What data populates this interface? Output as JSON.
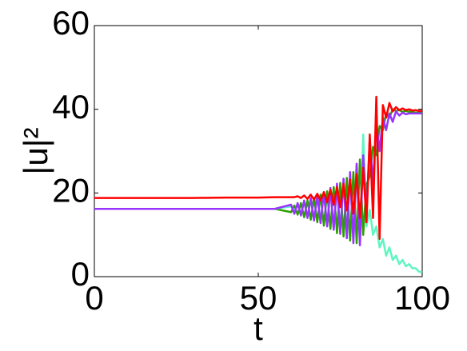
{
  "chart_data": {
    "type": "line",
    "xlabel": "t",
    "ylabel": "|u|²",
    "x": [
      0,
      10,
      20,
      30,
      40,
      50,
      55,
      60,
      61,
      62,
      63,
      64,
      65,
      66,
      67,
      68,
      69,
      70,
      71,
      72,
      73,
      74,
      75,
      76,
      77,
      78,
      79,
      80,
      81,
      82,
      83,
      84,
      85,
      86,
      87,
      88,
      89,
      90,
      91,
      92,
      93,
      94,
      95,
      96,
      97,
      98,
      99,
      100
    ],
    "series": [
      {
        "name": "green",
        "color": "#2ca000",
        "values": [
          16.2,
          16.2,
          16.2,
          16.2,
          16.2,
          16.2,
          16.2,
          15.4,
          17.0,
          14.8,
          17.6,
          14.2,
          18.2,
          13.6,
          18.8,
          13.0,
          19.6,
          12.2,
          20.4,
          11.4,
          21.4,
          10.4,
          22.4,
          9.6,
          23.6,
          8.6,
          25,
          8,
          28,
          10,
          22,
          24,
          31,
          29,
          36,
          35,
          39,
          38,
          40,
          39.6,
          39.8,
          39.4,
          39.6,
          39.4,
          39.4,
          39.2,
          39.2,
          39.2
        ]
      },
      {
        "name": "cyan",
        "color": "#5ef5c0",
        "values": [
          16.2,
          16.2,
          16.2,
          16.2,
          16.2,
          16.2,
          16.2,
          16.8,
          15.6,
          17.2,
          15.0,
          17.8,
          14.4,
          18.4,
          13.8,
          19.0,
          13.2,
          19.8,
          12.4,
          20.8,
          11.6,
          21.8,
          10.8,
          22.6,
          10.0,
          24,
          9,
          26,
          8,
          34,
          12,
          16,
          10,
          12,
          7,
          9,
          5,
          7,
          4,
          5,
          3,
          4,
          2.5,
          3,
          2,
          2,
          1.2,
          1
        ]
      },
      {
        "name": "purple",
        "color": "#9933ff",
        "values": [
          16.2,
          16.2,
          16.2,
          16.2,
          16.2,
          16.2,
          16.2,
          17.2,
          15.0,
          17.6,
          14.6,
          18.2,
          14.0,
          18.8,
          13.4,
          19.4,
          12.8,
          20.2,
          12.0,
          21.2,
          11.2,
          22.2,
          10.2,
          23.4,
          9.2,
          25,
          8,
          27,
          7.5,
          29,
          15,
          33,
          22,
          37,
          30,
          38,
          35,
          39,
          37,
          39.5,
          38.5,
          39.2,
          38.8,
          39,
          39,
          39,
          39,
          39
        ]
      },
      {
        "name": "red",
        "color": "#ff0000",
        "values": [
          18.8,
          18.8,
          18.8,
          18.8,
          18.9,
          18.9,
          19.0,
          19.0,
          19.0,
          19.2,
          18.8,
          19.4,
          18.6,
          19.6,
          18.4,
          19.8,
          18.2,
          20.2,
          17.8,
          20.8,
          17.2,
          21.4,
          16.6,
          22.2,
          15.8,
          23.2,
          15,
          24.5,
          14,
          26,
          13,
          34,
          14,
          43,
          9,
          41,
          38,
          41.5,
          39.5,
          40.5,
          39.8,
          40.2,
          39.8,
          40,
          39.7,
          39.8,
          39.6,
          39.6
        ]
      }
    ],
    "xlim": [
      0,
      100
    ],
    "xticks": [
      0,
      50,
      100
    ],
    "ylim": [
      0,
      60
    ],
    "yticks": [
      0,
      20,
      40,
      60
    ]
  }
}
